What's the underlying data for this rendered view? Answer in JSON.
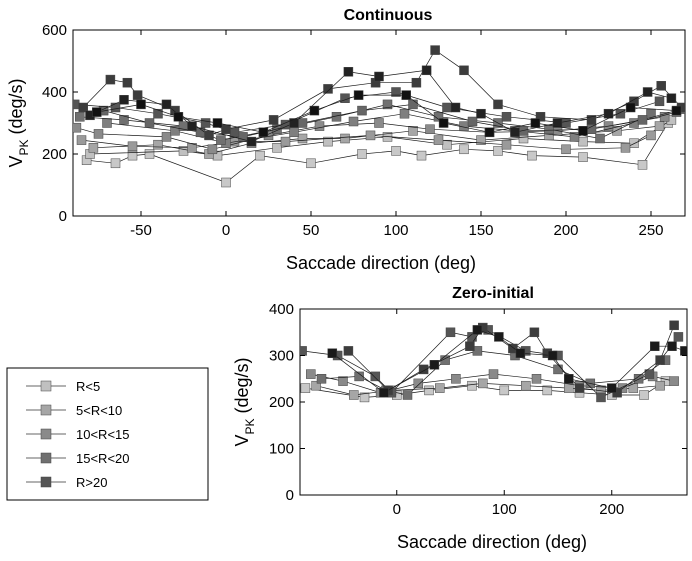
{
  "figure": {
    "legend": {
      "placement": "left-bottom",
      "entries": [
        {
          "label": "R<5",
          "color": "#c0c0c0"
        },
        {
          "label": "5<R<10",
          "color": "#a6a6a6"
        },
        {
          "label": "10<R<15",
          "color": "#8a8a8a"
        },
        {
          "label": "15<R<20",
          "color": "#707070"
        },
        {
          "label": "R>20",
          "color": "#555555"
        }
      ]
    }
  },
  "chart_data": [
    {
      "type": "line",
      "title": "Continuous",
      "xlabel": "Saccade direction (deg)",
      "ylabel": "V",
      "ylabel_sub": "PK",
      "ylabel_suffix": " (deg/s)",
      "xlim": [
        -90,
        270
      ],
      "ylim": [
        0,
        600
      ],
      "xticks": [
        -50,
        0,
        50,
        100,
        150,
        200,
        250
      ],
      "yticks": [
        0,
        200,
        400,
        600
      ],
      "series": [
        {
          "name": "R<5",
          "color": "#c8c8c8",
          "points": [
            [
              -82,
              180
            ],
            [
              -65,
              170
            ],
            [
              -55,
              195
            ],
            [
              -45,
              200
            ],
            [
              0,
              108
            ],
            [
              20,
              195
            ],
            [
              50,
              170
            ],
            [
              80,
              200
            ],
            [
              100,
              210
            ],
            [
              115,
              195
            ],
            [
              140,
              215
            ],
            [
              160,
              210
            ],
            [
              180,
              195
            ],
            [
              210,
              190
            ],
            [
              245,
              165
            ],
            [
              260,
              300
            ]
          ]
        },
        {
          "name": "R<5 b",
          "color": "#c0c0c0",
          "points": [
            [
              -80,
              200
            ],
            [
              -25,
              210
            ],
            [
              -5,
              195
            ],
            [
              30,
              220
            ],
            [
              60,
              240
            ],
            [
              95,
              255
            ],
            [
              130,
              230
            ],
            [
              175,
              250
            ],
            [
              210,
              240
            ],
            [
              240,
              235
            ],
            [
              262,
              310
            ]
          ]
        },
        {
          "name": "5<R<10",
          "color": "#a6a6a6",
          "points": [
            [
              -78,
              220
            ],
            [
              -40,
              230
            ],
            [
              -10,
              200
            ],
            [
              15,
              235
            ],
            [
              45,
              250
            ],
            [
              70,
              250
            ],
            [
              110,
              275
            ],
            [
              150,
              245
            ],
            [
              190,
              260
            ],
            [
              230,
              275
            ],
            [
              255,
              290
            ]
          ]
        },
        {
          "name": "5<R<10 b",
          "color": "#9a9a9a",
          "points": [
            [
              -85,
              245
            ],
            [
              -55,
              225
            ],
            [
              -20,
              220
            ],
            [
              5,
              240
            ],
            [
              35,
              240
            ],
            [
              85,
              260
            ],
            [
              125,
              245
            ],
            [
              165,
              230
            ],
            [
              200,
              215
            ],
            [
              235,
              220
            ],
            [
              250,
              260
            ]
          ]
        },
        {
          "name": "10<R<15",
          "color": "#8a8a8a",
          "points": [
            [
              -88,
              285
            ],
            [
              -75,
              265
            ],
            [
              -35,
              255
            ],
            [
              -8,
              215
            ],
            [
              25,
              260
            ],
            [
              55,
              290
            ],
            [
              90,
              300
            ],
            [
              120,
              280
            ],
            [
              155,
              270
            ],
            [
              195,
              275
            ],
            [
              225,
              290
            ],
            [
              258,
              320
            ]
          ]
        },
        {
          "name": "10<R<15 b",
          "color": "#7f7f7f",
          "points": [
            [
              -70,
              300
            ],
            [
              -30,
              275
            ],
            [
              0,
              235
            ],
            [
              40,
              270
            ],
            [
              75,
              305
            ],
            [
              105,
              330
            ],
            [
              140,
              290
            ],
            [
              170,
              275
            ],
            [
              205,
              255
            ],
            [
              240,
              300
            ],
            [
              265,
              335
            ]
          ]
        },
        {
          "name": "15<R<20",
          "color": "#707070",
          "points": [
            [
              -86,
              320
            ],
            [
              -60,
              310
            ],
            [
              -25,
              290
            ],
            [
              -3,
              245
            ],
            [
              30,
              280
            ],
            [
              65,
              320
            ],
            [
              95,
              360
            ],
            [
              125,
              320
            ],
            [
              160,
              300
            ],
            [
              190,
              280
            ],
            [
              220,
              250
            ],
            [
              250,
              330
            ]
          ]
        },
        {
          "name": "15<R<20 b",
          "color": "#666666",
          "points": [
            [
              -72,
              340
            ],
            [
              -45,
              300
            ],
            [
              -15,
              270
            ],
            [
              10,
              255
            ],
            [
              45,
              300
            ],
            [
              80,
              340
            ],
            [
              110,
              360
            ],
            [
              145,
              305
            ],
            [
              175,
              275
            ],
            [
              215,
              280
            ],
            [
              245,
              310
            ],
            [
              268,
              345
            ]
          ]
        },
        {
          "name": "R>20",
          "color": "#555555",
          "points": [
            [
              -89,
              360
            ],
            [
              -65,
              350
            ],
            [
              -40,
              330
            ],
            [
              -12,
              300
            ],
            [
              5,
              270
            ],
            [
              35,
              295
            ],
            [
              70,
              380
            ],
            [
              100,
              400
            ],
            [
              130,
              350
            ],
            [
              165,
              320
            ],
            [
              200,
              300
            ],
            [
              232,
              330
            ],
            [
              255,
              370
            ]
          ]
        },
        {
          "name": "R>20 b",
          "color": "#3c3c3c",
          "points": [
            [
              -84,
              350
            ],
            [
              -68,
              440
            ],
            [
              -58,
              430
            ],
            [
              -52,
              390
            ],
            [
              -30,
              340
            ],
            [
              -10,
              260
            ],
            [
              0,
              280
            ],
            [
              28,
              310
            ],
            [
              60,
              410
            ],
            [
              88,
              430
            ],
            [
              112,
              430
            ],
            [
              123,
              535
            ],
            [
              140,
              470
            ],
            [
              160,
              360
            ],
            [
              185,
              320
            ],
            [
              215,
              310
            ],
            [
              240,
              370
            ],
            [
              256,
              420
            ],
            [
              268,
              350
            ]
          ]
        },
        {
          "name": "R>20 c",
          "color": "#222222",
          "points": [
            [
              -80,
              325
            ],
            [
              -60,
              375
            ],
            [
              -35,
              360
            ],
            [
              -20,
              290
            ],
            [
              15,
              240
            ],
            [
              40,
              300
            ],
            [
              72,
              465
            ],
            [
              90,
              450
            ],
            [
              118,
              470
            ],
            [
              135,
              350
            ],
            [
              150,
              330
            ],
            [
              170,
              270
            ],
            [
              195,
              300
            ],
            [
              225,
              330
            ],
            [
              248,
              400
            ],
            [
              262,
              380
            ]
          ]
        },
        {
          "name": "R>20 d",
          "color": "#111111",
          "points": [
            [
              -76,
              335
            ],
            [
              -50,
              360
            ],
            [
              -28,
              320
            ],
            [
              -5,
              300
            ],
            [
              22,
              270
            ],
            [
              52,
              340
            ],
            [
              78,
              390
            ],
            [
              106,
              390
            ],
            [
              128,
              300
            ],
            [
              155,
              270
            ],
            [
              182,
              300
            ],
            [
              210,
              275
            ],
            [
              238,
              350
            ],
            [
              265,
              340
            ]
          ]
        }
      ]
    },
    {
      "type": "line",
      "title": "Zero-initial",
      "xlabel": "Saccade direction (deg)",
      "ylabel": "V",
      "ylabel_sub": "PK",
      "ylabel_suffix": " (deg/s)",
      "xlim": [
        -90,
        270
      ],
      "ylim": [
        0,
        400
      ],
      "xticks": [
        0,
        100,
        200
      ],
      "yticks": [
        0,
        100,
        200,
        300,
        400
      ],
      "series": [
        {
          "name": "R<5",
          "color": "#c8c8c8",
          "points": [
            [
              -85,
              230
            ],
            [
              -30,
              210
            ],
            [
              0,
              215
            ],
            [
              30,
              225
            ],
            [
              70,
              235
            ],
            [
              100,
              225
            ],
            [
              140,
              225
            ],
            [
              170,
              220
            ],
            [
              200,
              215
            ],
            [
              230,
              215
            ],
            [
              250,
              245
            ]
          ]
        },
        {
          "name": "5<R<10",
          "color": "#a6a6a6",
          "points": [
            [
              -75,
              235
            ],
            [
              -40,
              215
            ],
            [
              -5,
              225
            ],
            [
              40,
              230
            ],
            [
              80,
              240
            ],
            [
              120,
              235
            ],
            [
              160,
              230
            ],
            [
              190,
              225
            ],
            [
              220,
              230
            ],
            [
              245,
              235
            ]
          ]
        },
        {
          "name": "10<R<15",
          "color": "#8a8a8a",
          "points": [
            [
              -80,
              260
            ],
            [
              -50,
              245
            ],
            [
              -15,
              220
            ],
            [
              20,
              240
            ],
            [
              55,
              250
            ],
            [
              90,
              260
            ],
            [
              130,
              250
            ],
            [
              170,
              235
            ],
            [
              210,
              230
            ],
            [
              238,
              255
            ],
            [
              258,
              245
            ]
          ]
        },
        {
          "name": "15<R<20",
          "color": "#707070",
          "points": [
            [
              -70,
              250
            ],
            [
              -35,
              255
            ],
            [
              -10,
              225
            ],
            [
              10,
              215
            ],
            [
              45,
              290
            ],
            [
              75,
              310
            ],
            [
              110,
              300
            ],
            [
              150,
              270
            ],
            [
              180,
              240
            ],
            [
              225,
              250
            ],
            [
              250,
              290
            ]
          ]
        },
        {
          "name": "R>20",
          "color": "#555555",
          "points": [
            [
              -88,
              310
            ],
            [
              -55,
              300
            ],
            [
              -20,
              255
            ],
            [
              -5,
              220
            ],
            [
              50,
              350
            ],
            [
              70,
              340
            ],
            [
              85,
              355
            ],
            [
              120,
              310
            ],
            [
              150,
              300
            ],
            [
              190,
              210
            ],
            [
              235,
              260
            ],
            [
              262,
              340
            ]
          ]
        },
        {
          "name": "R>20 b",
          "color": "#3c3c3c",
          "points": [
            [
              -45,
              310
            ],
            [
              -8,
              225
            ],
            [
              25,
              270
            ],
            [
              68,
              320
            ],
            [
              80,
              360
            ],
            [
              108,
              315
            ],
            [
              128,
              350
            ],
            [
              140,
              305
            ],
            [
              170,
              230
            ],
            [
              205,
              220
            ],
            [
              245,
              290
            ],
            [
              258,
              365
            ]
          ]
        },
        {
          "name": "R>20 c",
          "color": "#1a1a1a",
          "points": [
            [
              -60,
              305
            ],
            [
              -12,
              220
            ],
            [
              35,
              280
            ],
            [
              75,
              355
            ],
            [
              95,
              340
            ],
            [
              115,
              305
            ],
            [
              145,
              300
            ],
            [
              160,
              250
            ],
            [
              200,
              230
            ],
            [
              240,
              320
            ],
            [
              256,
              320
            ],
            [
              268,
              310
            ]
          ]
        }
      ]
    }
  ]
}
